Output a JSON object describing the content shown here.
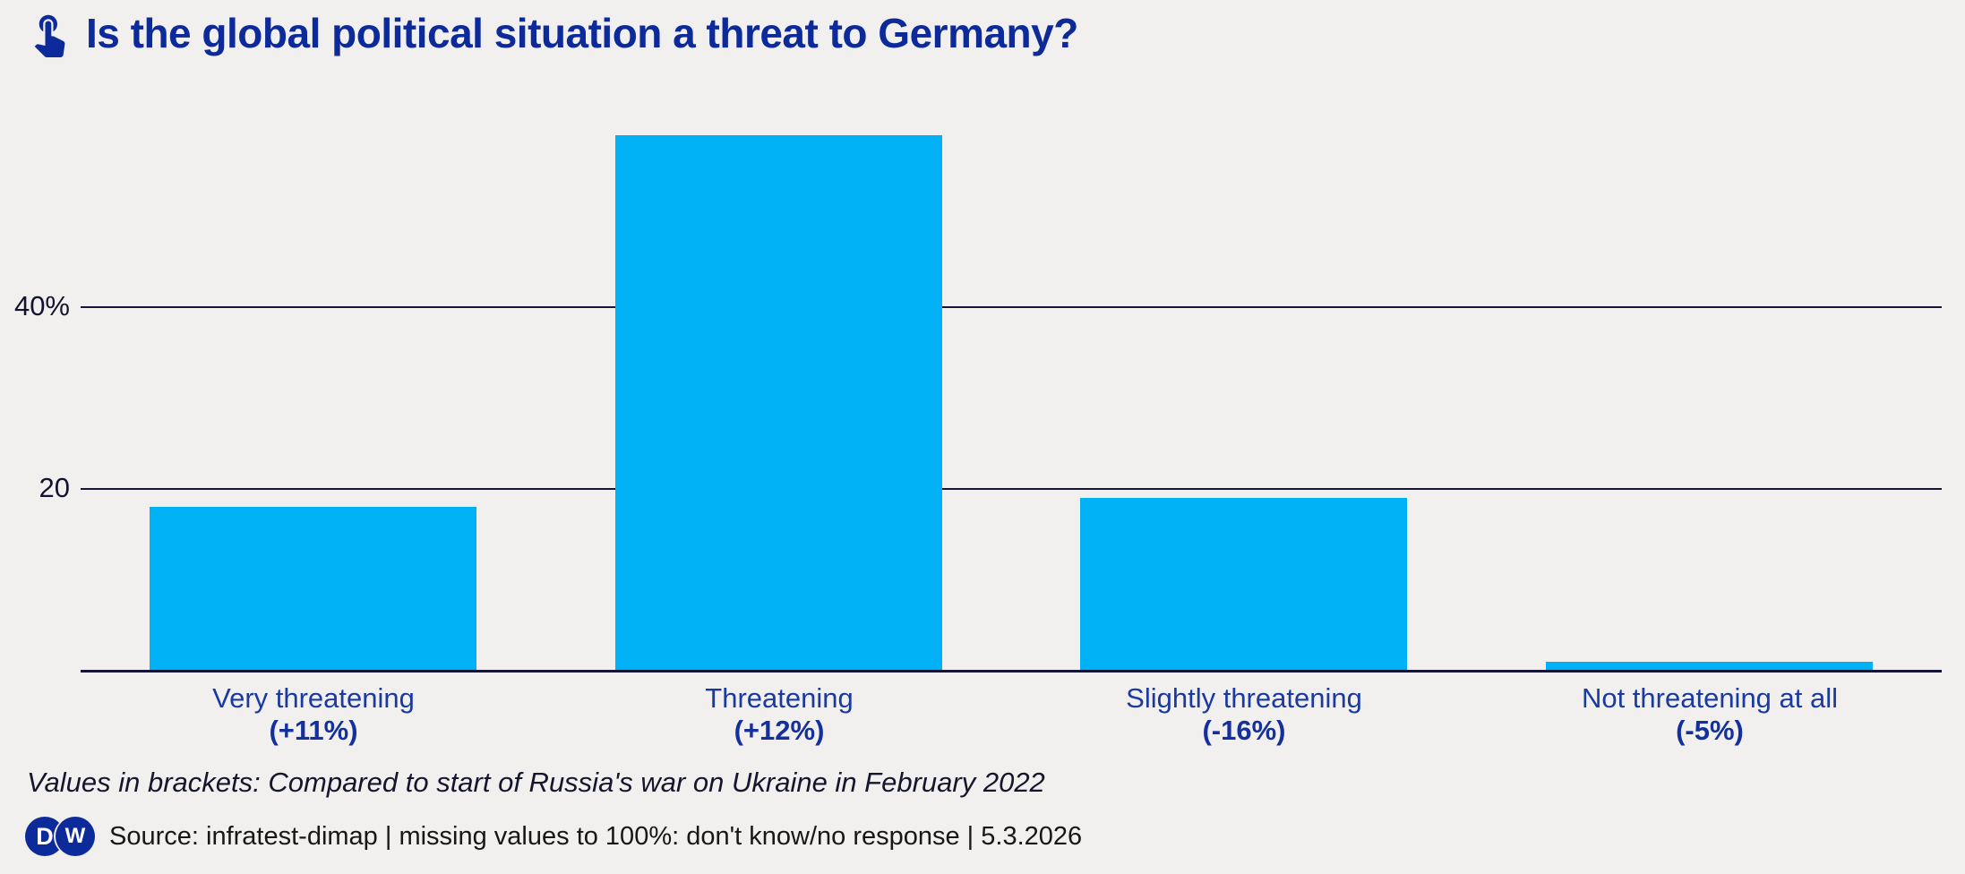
{
  "page": {
    "colors": {
      "background": "#f1f0ee",
      "brand_navy": "#0d2a9b",
      "bar_cyan": "#00b1f5",
      "axis_line": "#15153a"
    }
  },
  "header": {
    "icon": "touch-app-icon",
    "title": "Is the global political situation a threat to Germany?"
  },
  "chart_data": {
    "type": "bar",
    "title": "Is the global political situation a threat to Germany?",
    "categories": [
      "Very threatening",
      "Threatening",
      "Slightly threatening",
      "Not threatening at all"
    ],
    "values": [
      18,
      59,
      19,
      1
    ],
    "change_labels": [
      "(+11%)",
      "(+12%)",
      "(-16%)",
      "(-5%)"
    ],
    "xlabel": "",
    "ylabel": "",
    "ylim": [
      0,
      64
    ],
    "yticks": [
      {
        "value": 20,
        "label": "20"
      },
      {
        "value": 40,
        "label": "40%"
      }
    ],
    "grid": "horizontal",
    "legend": "none",
    "bar_color": "#00b1f5"
  },
  "footnote": "Values in brackets: Compared to start of Russia's war on Ukraine in February 2022",
  "source": {
    "logo_d": "D",
    "logo_w": "W",
    "text": "Source: infratest-dimap | missing values to 100%: don't know/no response | 5.3.2026"
  }
}
